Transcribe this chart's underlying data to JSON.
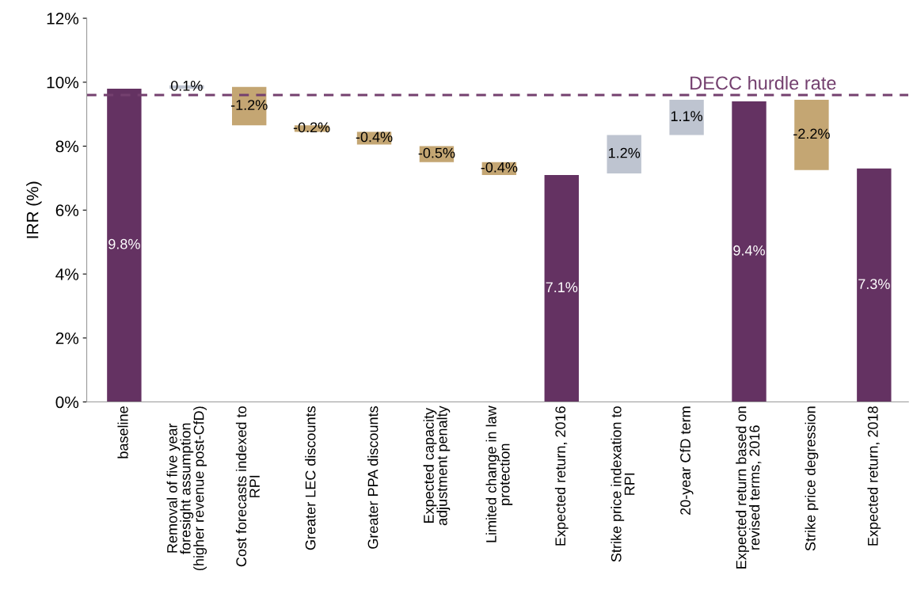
{
  "chart_data": {
    "type": "bar",
    "ylabel": "IRR (%)",
    "categories": [
      "baseline",
      "Removal of five year\nforesight assumption\n(higher revenue post-CfD)",
      "Cost forecasts indexed to\nRPI",
      "Greater LEC discounts",
      "Greater PPA discounts",
      "Expected capacity\nadjustment penalty",
      "Limited change in law\nprotection",
      "Expected return, 2016",
      "Strike price indexation to\nRPI",
      "20-year CfD term",
      "Expected return based on\nrevised terms, 2016",
      "Strike price degression",
      "Expected return, 2018"
    ],
    "values": [
      9.8,
      0.1,
      -1.2,
      -0.2,
      -0.4,
      -0.5,
      -0.4,
      7.1,
      1.2,
      1.1,
      9.4,
      -2.2,
      7.3
    ],
    "base": [
      0,
      9.8,
      9.85,
      8.65,
      8.45,
      8.0,
      7.5,
      0,
      7.15,
      8.35,
      0,
      9.45,
      0
    ],
    "colors": [
      "#643262",
      "#bec4d0",
      "#c4a673",
      "#c4a673",
      "#c4a673",
      "#c4a673",
      "#c4a673",
      "#643262",
      "#bec4d0",
      "#bec4d0",
      "#643262",
      "#c4a673",
      "#643262"
    ],
    "value_labels": [
      "9.8%",
      "0.1%",
      "-1.2%",
      "-0.2%",
      "-0.4%",
      "-0.5%",
      "-0.4%",
      "7.1%",
      "1.2%",
      "1.1%",
      "9.4%",
      "-2.2%",
      "7.3%"
    ],
    "ylim": [
      0,
      12
    ],
    "yticks": [
      {
        "value": 0,
        "label": "0%"
      },
      {
        "value": 2,
        "label": "2%"
      },
      {
        "value": 4,
        "label": "4%"
      },
      {
        "value": 6,
        "label": "6%"
      },
      {
        "value": 8,
        "label": "8%"
      },
      {
        "value": 10,
        "label": "10%"
      },
      {
        "value": 12,
        "label": "12%"
      }
    ],
    "ref_lines": [
      {
        "axis": "y",
        "value": 9.6,
        "label": "DECC hurdle rate",
        "color": "#74406f",
        "line_style": "dashed"
      }
    ],
    "grid": false,
    "legend": false
  }
}
